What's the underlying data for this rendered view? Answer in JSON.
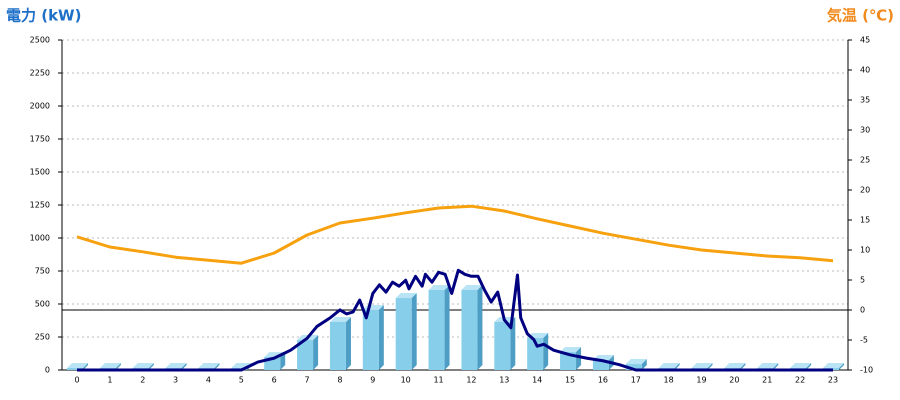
{
  "chart_data": {
    "type": "combo",
    "y_label": "電力 (kW)",
    "y2_label": "気温 (℃)",
    "categories": [
      "0",
      "1",
      "2",
      "3",
      "4",
      "5",
      "6",
      "7",
      "8",
      "9",
      "10",
      "11",
      "12",
      "13",
      "14",
      "15",
      "16",
      "17",
      "18",
      "19",
      "20",
      "21",
      "22",
      "23"
    ],
    "ylim": [
      0,
      2500
    ],
    "yticks": [
      0,
      250,
      500,
      750,
      1000,
      1250,
      1500,
      1750,
      2000,
      2250,
      2500
    ],
    "y2lim": [
      -10,
      45
    ],
    "y2ticks": [
      -10,
      -5,
      0,
      5,
      10,
      15,
      20,
      25,
      30,
      35,
      40,
      45
    ],
    "grid": true,
    "series": [
      {
        "type": "bar",
        "color": "#87ceeb",
        "values": [
          15,
          15,
          15,
          15,
          15,
          15,
          98,
          227,
          364,
          455,
          545,
          606,
          606,
          364,
          242,
          136,
          76,
          45,
          15,
          15,
          15,
          15,
          15,
          15
        ]
      },
      {
        "type": "line",
        "axis": "y2",
        "color": "#f7a10f",
        "values": [
          12.2,
          10.5,
          9.7,
          8.8,
          8.3,
          7.8,
          9.5,
          12.5,
          14.5,
          15.3,
          16.2,
          17,
          17.3,
          16.5,
          15.2,
          14,
          12.8,
          11.8,
          10.8,
          10,
          9.5,
          9,
          8.7,
          8.2
        ]
      },
      {
        "type": "line",
        "color": "#000080",
        "x": [
          0,
          5,
          5.5,
          6,
          6.5,
          7,
          7.3,
          7.7,
          8,
          8.2,
          8.4,
          8.6,
          8.8,
          9,
          9.2,
          9.4,
          9.6,
          9.8,
          10,
          10.1,
          10.3,
          10.5,
          10.6,
          10.8,
          11,
          11.2,
          11.4,
          11.6,
          11.8,
          12,
          12.2,
          12.4,
          12.6,
          12.8,
          13,
          13.2,
          13.4,
          13.5,
          13.7,
          13.9,
          14,
          14.2,
          14.5,
          15,
          15.5,
          16,
          16.5,
          17,
          23
        ],
        "values": [
          0,
          0,
          60,
          90,
          150,
          240,
          330,
          395,
          455,
          425,
          440,
          530,
          395,
          580,
          645,
          590,
          665,
          635,
          680,
          615,
          710,
          635,
          725,
          665,
          740,
          725,
          580,
          755,
          725,
          710,
          710,
          605,
          515,
          590,
          380,
          320,
          720,
          395,
          275,
          230,
          180,
          195,
          150,
          115,
          90,
          70,
          40,
          0,
          0
        ]
      }
    ]
  }
}
